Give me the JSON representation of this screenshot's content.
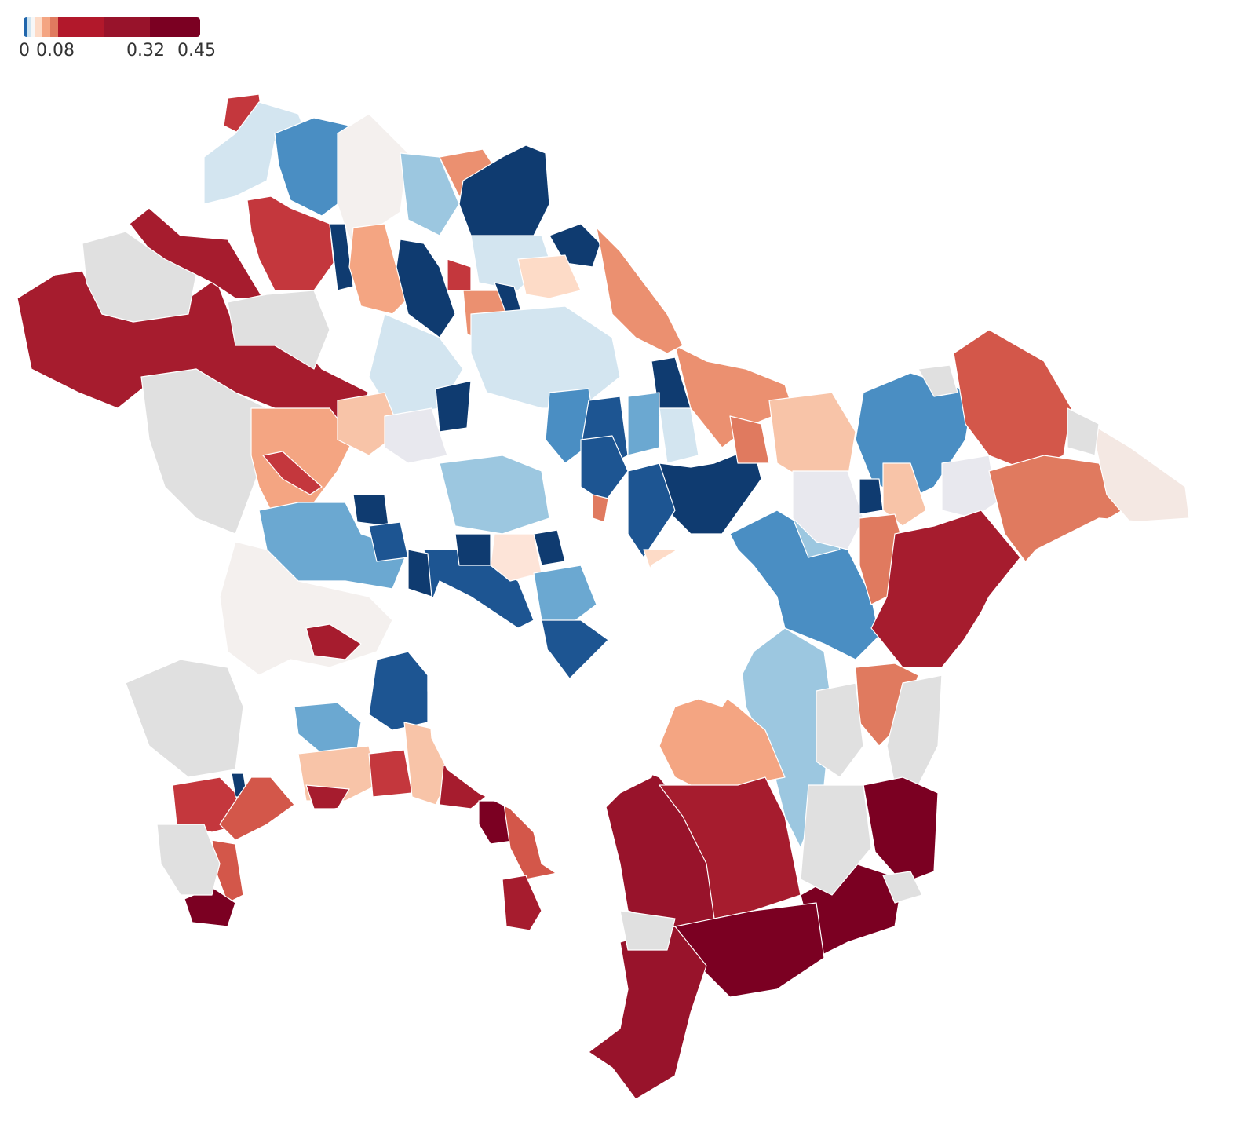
{
  "legend": {
    "ticks": [
      {
        "label": "0",
        "value": 0
      },
      {
        "label": "0.08",
        "value": 0.08
      },
      {
        "label": "0.32",
        "value": 0.32
      },
      {
        "label": "0.45",
        "value": 0.45
      }
    ],
    "scale_min": -0.01,
    "scale_max": 0.45,
    "color_stops": [
      {
        "value": -0.01,
        "color": "#2166ac"
      },
      {
        "value": 0.0,
        "color": "#d1e5f0"
      },
      {
        "value": 0.01,
        "color": "#f7f7f7"
      },
      {
        "value": 0.02,
        "color": "#fddbc7"
      },
      {
        "value": 0.04,
        "color": "#f4a582"
      },
      {
        "value": 0.06,
        "color": "#e07a5f"
      },
      {
        "value": 0.08,
        "color": "#b2182b"
      },
      {
        "value": 0.2,
        "color": "#98132b"
      },
      {
        "value": 0.32,
        "color": "#7b0022"
      },
      {
        "value": 0.45,
        "color": "#67001f"
      }
    ]
  },
  "colors": {
    "nodata": "#e6e6e6",
    "water": "#ffffff",
    "border": "#ffffff"
  }
}
